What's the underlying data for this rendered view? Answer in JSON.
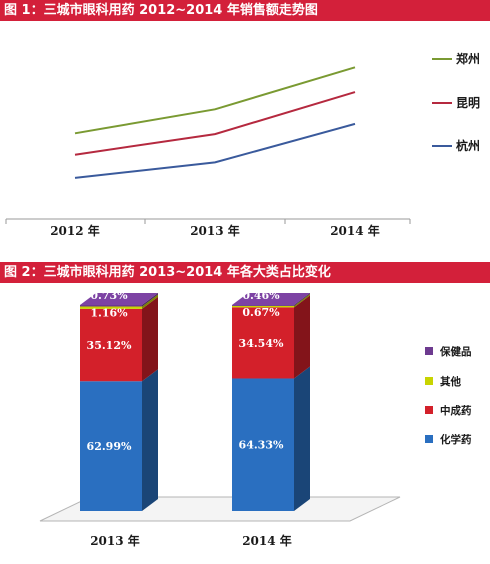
{
  "chart_data": [
    {
      "type": "line",
      "title": "图 1：三城市眼科用药 2012~2014 年销售额走势图",
      "categories": [
        "2012 年",
        "2013 年",
        "2014 年"
      ],
      "series": [
        {
          "name": "郑州",
          "color": "#7a9a32",
          "values": [
            100,
            128,
            177
          ]
        },
        {
          "name": "昆明",
          "color": "#b5293f",
          "values": [
            75,
            99,
            148
          ]
        },
        {
          "name": "杭州",
          "color": "#3a5a9c",
          "values": [
            48,
            66,
            111
          ]
        }
      ],
      "value_unit": "relative (no y-axis printed)",
      "ylim": [
        0,
        210
      ],
      "legend": "right"
    },
    {
      "type": "bar",
      "stacked": true,
      "title": "图 2：三城市眼科用药 2013~2014 年各大类占比变化",
      "categories": [
        "2013 年",
        "2014 年"
      ],
      "series": [
        {
          "name": "化学药",
          "color": "#2a6fc0",
          "values": [
            62.99,
            64.33
          ],
          "labels": [
            "62.99%",
            "64.33%"
          ]
        },
        {
          "name": "中成药",
          "color": "#d3202a",
          "values": [
            35.12,
            34.54
          ],
          "labels": [
            "35.12%",
            "34.54%"
          ]
        },
        {
          "name": "其他",
          "color": "#c8d400",
          "values": [
            1.16,
            0.67
          ],
          "labels": [
            "1.16%",
            "0.67%"
          ]
        },
        {
          "name": "保健品",
          "color": "#6d3a8f",
          "values": [
            0.73,
            0.46
          ],
          "labels": [
            "0.73%",
            "0.46%"
          ]
        }
      ],
      "legend_order": [
        "保健品",
        "其他",
        "中成药",
        "化学药"
      ],
      "ylim": [
        0,
        100
      ],
      "legend": "right"
    }
  ]
}
